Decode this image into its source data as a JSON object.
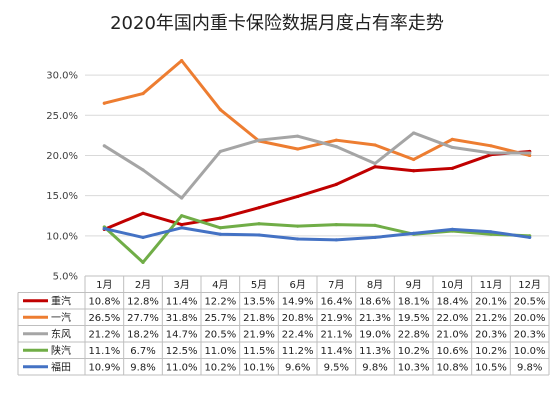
{
  "chart_data": {
    "type": "line",
    "title": "2020年国内重卡保险数据月度占有率走势",
    "categories": [
      "1月",
      "2月",
      "3月",
      "4月",
      "5月",
      "6月",
      "7月",
      "8月",
      "9月",
      "10月",
      "11月",
      "12月"
    ],
    "y_ticks": [
      "5.0%",
      "10.0%",
      "15.0%",
      "20.0%",
      "25.0%",
      "30.0%"
    ],
    "ylim": [
      5,
      32.5
    ],
    "ylabel": "",
    "xlabel": "",
    "grid": true,
    "legend": "data-table-left",
    "series": [
      {
        "name": "重汽",
        "color": "#c00000",
        "values": [
          10.8,
          12.8,
          11.4,
          12.2,
          13.5,
          14.9,
          16.4,
          18.6,
          18.1,
          18.4,
          20.1,
          20.5
        ],
        "labels": [
          "10.8%",
          "12.8%",
          "11.4%",
          "12.2%",
          "13.5%",
          "14.9%",
          "16.4%",
          "18.6%",
          "18.1%",
          "18.4%",
          "20.1%",
          "20.5%"
        ]
      },
      {
        "name": "一汽",
        "color": "#ed7d31",
        "values": [
          26.5,
          27.7,
          31.8,
          25.7,
          21.8,
          20.8,
          21.9,
          21.3,
          19.5,
          22.0,
          21.2,
          20.0
        ],
        "labels": [
          "26.5%",
          "27.7%",
          "31.8%",
          "25.7%",
          "21.8%",
          "20.8%",
          "21.9%",
          "21.3%",
          "19.5%",
          "22.0%",
          "21.2%",
          "20.0%"
        ]
      },
      {
        "name": "东风",
        "color": "#a5a5a5",
        "values": [
          21.2,
          18.2,
          14.7,
          20.5,
          21.9,
          22.4,
          21.1,
          19.0,
          22.8,
          21.0,
          20.3,
          20.3
        ],
        "labels": [
          "21.2%",
          "18.2%",
          "14.7%",
          "20.5%",
          "21.9%",
          "22.4%",
          "21.1%",
          "19.0%",
          "22.8%",
          "21.0%",
          "20.3%",
          "20.3%"
        ]
      },
      {
        "name": "陕汽",
        "color": "#70ad47",
        "values": [
          11.1,
          6.7,
          12.5,
          11.0,
          11.5,
          11.2,
          11.4,
          11.3,
          10.2,
          10.6,
          10.2,
          10.0
        ],
        "labels": [
          "11.1%",
          "6.7%",
          "12.5%",
          "11.0%",
          "11.5%",
          "11.2%",
          "11.4%",
          "11.3%",
          "10.2%",
          "10.6%",
          "10.2%",
          "10.0%"
        ]
      },
      {
        "name": "福田",
        "color": "#4472c4",
        "values": [
          10.9,
          9.8,
          11.0,
          10.2,
          10.1,
          9.6,
          9.5,
          9.8,
          10.3,
          10.8,
          10.5,
          9.8
        ],
        "labels": [
          "10.9%",
          "9.8%",
          "11.0%",
          "10.2%",
          "10.1%",
          "9.6%",
          "9.5%",
          "9.8%",
          "10.3%",
          "10.8%",
          "10.5%",
          "9.8%"
        ]
      }
    ]
  }
}
